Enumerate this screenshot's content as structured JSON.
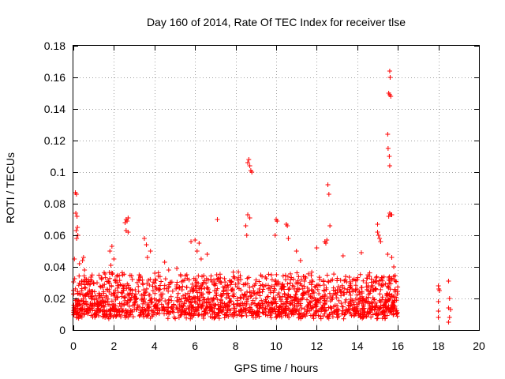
{
  "chart_data": {
    "type": "scatter",
    "title": "Day 160 of 2014, Rate Of TEC Index for receiver tlse",
    "xlabel": "GPS time / hours",
    "ylabel": "ROTI / TECUs",
    "xlim": [
      0,
      20
    ],
    "ylim": [
      0,
      0.18
    ],
    "xticks": [
      "0",
      "2",
      "4",
      "6",
      "8",
      "10",
      "12",
      "14",
      "16",
      "18",
      "20"
    ],
    "yticks": [
      "0",
      "0.02",
      "0.04",
      "0.06",
      "0.08",
      "0.1",
      "0.12",
      "0.14",
      "0.16",
      "0.18"
    ],
    "grid": true,
    "marker": "+",
    "color": "#ff0000",
    "series": [
      {
        "name": "ROTI",
        "points": [
          [
            0.1,
            0.087
          ],
          [
            0.15,
            0.086
          ],
          [
            0.12,
            0.074
          ],
          [
            0.18,
            0.072
          ],
          [
            0.2,
            0.065
          ],
          [
            0.14,
            0.063
          ],
          [
            0.16,
            0.058
          ],
          [
            0.22,
            0.06
          ],
          [
            0.05,
            0.045
          ],
          [
            0.3,
            0.042
          ],
          [
            0.45,
            0.044
          ],
          [
            0.5,
            0.046
          ],
          [
            0.55,
            0.038
          ],
          [
            0.9,
            0.031
          ],
          [
            1.0,
            0.03
          ],
          [
            1.8,
            0.05
          ],
          [
            1.9,
            0.053
          ],
          [
            2.0,
            0.045
          ],
          [
            1.85,
            0.041
          ],
          [
            2.6,
            0.07
          ],
          [
            2.65,
            0.069
          ],
          [
            2.7,
            0.071
          ],
          [
            2.55,
            0.068
          ],
          [
            2.6,
            0.063
          ],
          [
            2.7,
            0.062
          ],
          [
            3.5,
            0.058
          ],
          [
            3.6,
            0.054
          ],
          [
            3.8,
            0.05
          ],
          [
            3.65,
            0.046
          ],
          [
            4.5,
            0.043
          ],
          [
            4.7,
            0.038
          ],
          [
            5.1,
            0.039
          ],
          [
            5.8,
            0.056
          ],
          [
            6.0,
            0.057
          ],
          [
            6.2,
            0.055
          ],
          [
            6.1,
            0.05
          ],
          [
            6.3,
            0.045
          ],
          [
            6.6,
            0.048
          ],
          [
            7.1,
            0.07
          ],
          [
            8.6,
            0.106
          ],
          [
            8.7,
            0.104
          ],
          [
            8.75,
            0.101
          ],
          [
            8.8,
            0.1
          ],
          [
            8.65,
            0.108
          ],
          [
            8.6,
            0.073
          ],
          [
            8.7,
            0.071
          ],
          [
            8.5,
            0.066
          ],
          [
            8.55,
            0.06
          ],
          [
            10.0,
            0.07
          ],
          [
            10.05,
            0.069
          ],
          [
            9.95,
            0.06
          ],
          [
            10.5,
            0.067
          ],
          [
            10.55,
            0.066
          ],
          [
            10.6,
            0.058
          ],
          [
            11.0,
            0.05
          ],
          [
            11.2,
            0.044
          ],
          [
            12.0,
            0.052
          ],
          [
            12.4,
            0.056
          ],
          [
            12.5,
            0.057
          ],
          [
            12.45,
            0.055
          ],
          [
            12.55,
            0.092
          ],
          [
            12.6,
            0.086
          ],
          [
            12.65,
            0.066
          ],
          [
            13.3,
            0.047
          ],
          [
            14.2,
            0.049
          ],
          [
            15.0,
            0.062
          ],
          [
            15.05,
            0.06
          ],
          [
            15.1,
            0.058
          ],
          [
            15.15,
            0.056
          ],
          [
            15.0,
            0.067
          ],
          [
            15.6,
            0.164
          ],
          [
            15.62,
            0.16
          ],
          [
            15.55,
            0.15
          ],
          [
            15.6,
            0.149
          ],
          [
            15.65,
            0.148
          ],
          [
            15.5,
            0.124
          ],
          [
            15.52,
            0.115
          ],
          [
            15.58,
            0.11
          ],
          [
            15.6,
            0.104
          ],
          [
            15.6,
            0.074
          ],
          [
            15.65,
            0.073
          ],
          [
            15.7,
            0.073
          ],
          [
            15.55,
            0.072
          ],
          [
            15.5,
            0.048
          ],
          [
            15.7,
            0.046
          ],
          [
            15.8,
            0.04
          ],
          [
            18.0,
            0.028
          ],
          [
            18.02,
            0.026
          ],
          [
            18.05,
            0.025
          ],
          [
            18.0,
            0.018
          ],
          [
            18.0,
            0.012
          ],
          [
            18.0,
            0.008
          ],
          [
            18.5,
            0.031
          ],
          [
            18.55,
            0.02
          ],
          [
            18.5,
            0.014
          ],
          [
            18.6,
            0.013
          ],
          [
            18.55,
            0.008
          ],
          [
            18.5,
            0.005
          ]
        ],
        "dense_band": {
          "x_range": [
            0,
            16
          ],
          "y_typical_range": [
            0.004,
            0.035
          ],
          "description": "dense cloud of ROTI values"
        }
      }
    ]
  }
}
